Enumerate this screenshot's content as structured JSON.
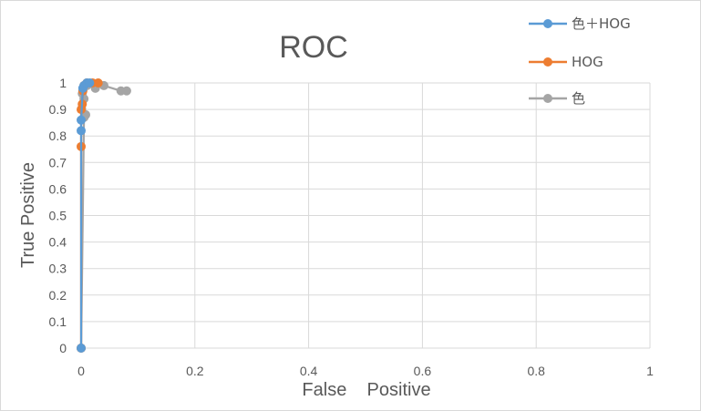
{
  "chart_data": {
    "type": "scatter",
    "title": "ROC",
    "xlabel": "False    Positive",
    "ylabel": "True Positive",
    "xlim": [
      0,
      1
    ],
    "ylim": [
      0,
      1
    ],
    "x_ticks": [
      "0",
      "0.2",
      "0.4",
      "0.6",
      "0.8",
      "1"
    ],
    "y_ticks": [
      "0",
      "0.1",
      "0.2",
      "0.3",
      "0.4",
      "0.5",
      "0.6",
      "0.7",
      "0.8",
      "0.9",
      "1"
    ],
    "grid": true,
    "legend_position": "top-right",
    "series": [
      {
        "name": "色＋HOG",
        "color": "#5b9bd5",
        "points": [
          [
            0,
            0
          ],
          [
            0,
            0.82
          ],
          [
            0,
            0.86
          ],
          [
            0.003,
            0.98
          ],
          [
            0.005,
            0.99
          ],
          [
            0.01,
            1.0
          ],
          [
            0.015,
            1.0
          ]
        ]
      },
      {
        "name": "HOG",
        "color": "#ed7d31",
        "points": [
          [
            0,
            0
          ],
          [
            0,
            0.76
          ],
          [
            0,
            0.9
          ],
          [
            0.002,
            0.92
          ],
          [
            0.003,
            0.97
          ],
          [
            0.005,
            0.99
          ],
          [
            0.01,
            1.0
          ],
          [
            0.02,
            1.0
          ],
          [
            0.03,
            1.0
          ]
        ]
      },
      {
        "name": "色",
        "color": "#a5a5a5",
        "points": [
          [
            0,
            0
          ],
          [
            0.005,
            0.87
          ],
          [
            0.008,
            0.88
          ],
          [
            0.005,
            0.94
          ],
          [
            0.002,
            0.96
          ],
          [
            0.01,
            0.99
          ],
          [
            0.025,
            0.98
          ],
          [
            0.04,
            0.99
          ],
          [
            0.07,
            0.97
          ],
          [
            0.08,
            0.97
          ]
        ]
      }
    ]
  }
}
